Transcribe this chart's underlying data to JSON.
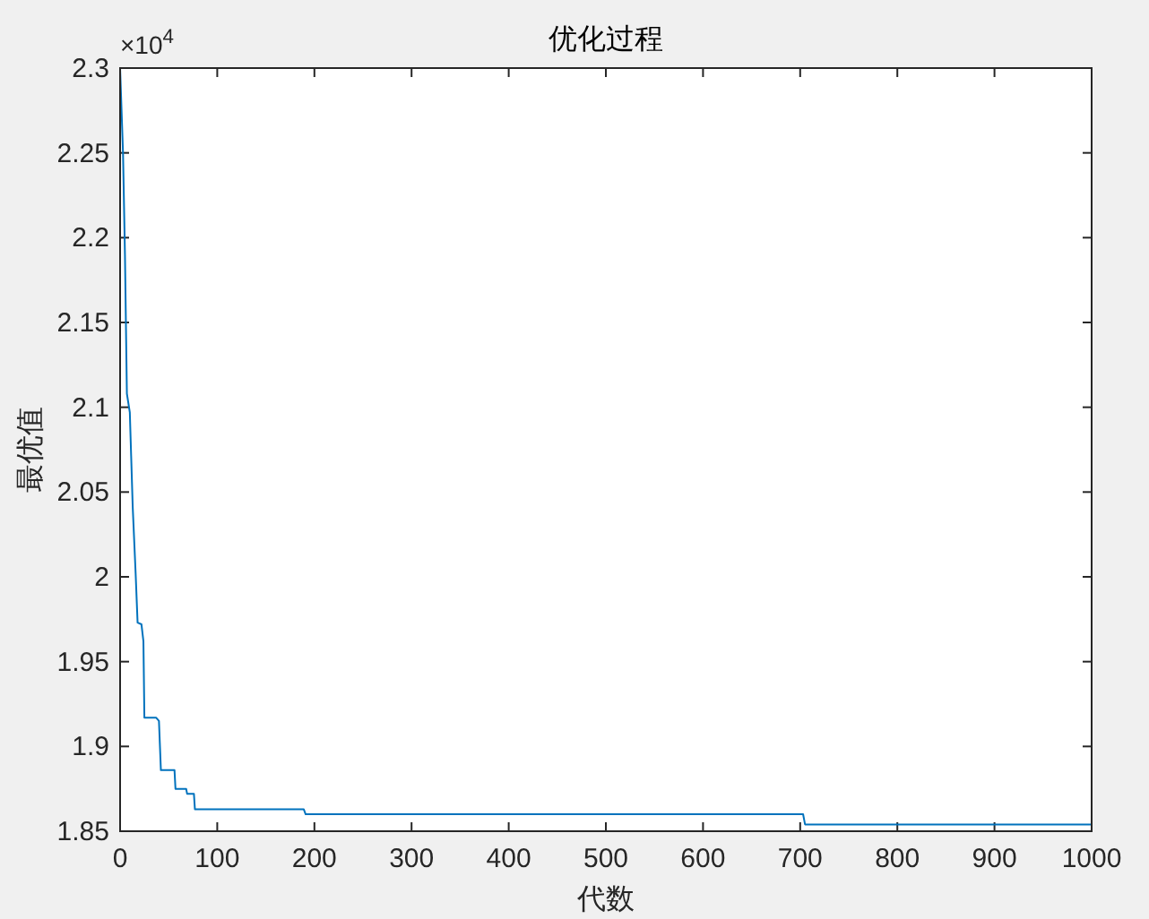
{
  "chart_data": {
    "type": "line",
    "title": "优化过程",
    "xlabel": "代数",
    "ylabel": "最优值",
    "annotations": [
      "×10$^{4}$"
    ],
    "xlim": [
      0,
      1000
    ],
    "xticks": [
      0,
      100,
      200,
      300,
      400,
      500,
      600,
      700,
      800,
      900,
      1000
    ],
    "ylim": [
      1.85,
      2.3
    ],
    "yticks": [
      1.85,
      1.9,
      1.95,
      2,
      2.05,
      2.1,
      2.15,
      2.2,
      2.25,
      2.3
    ],
    "grid": false,
    "marker": "none",
    "line_style": "solid",
    "series": [
      {
        "color": "#0072bd",
        "x": [
          0,
          3,
          5,
          7,
          10,
          13,
          16,
          18,
          22,
          24,
          25,
          37,
          40,
          42,
          56,
          57,
          68,
          69,
          76,
          77,
          189,
          191,
          703,
          705,
          1000
        ],
        "values": [
          2.3,
          2.25,
          2.19,
          2.108,
          2.097,
          2.041,
          2.002,
          1.973,
          1.972,
          1.962,
          1.917,
          1.917,
          1.915,
          1.886,
          1.886,
          1.875,
          1.875,
          1.872,
          1.872,
          1.863,
          1.863,
          1.86,
          1.86,
          1.854,
          1.854
        ]
      }
    ]
  }
}
